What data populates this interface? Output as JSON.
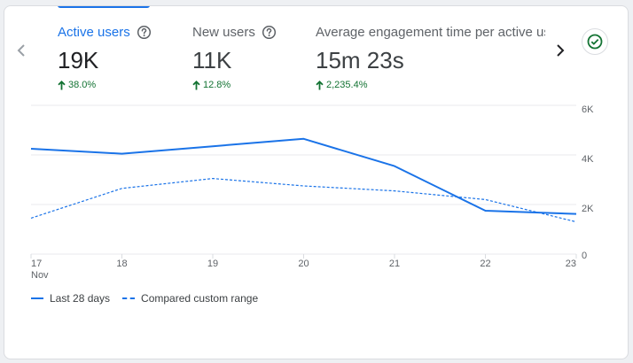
{
  "metrics": [
    {
      "label": "Active users",
      "value": "19K",
      "change": "38.0%",
      "active": true
    },
    {
      "label": "New users",
      "value": "11K",
      "change": "12.8%",
      "active": false
    },
    {
      "label": "Average engagement time per active user",
      "value": "15m 23s",
      "change": "2,235.4%",
      "active": false
    }
  ],
  "colors": {
    "accent": "#1a73e8",
    "positive": "#137333",
    "grid": "#e8eaed",
    "text": "#5f6368"
  },
  "icons": {
    "prev": "chevron-left-icon",
    "next": "chevron-right-icon",
    "check": "check-circle-icon",
    "help": "help-circle-icon",
    "up": "arrow-up-icon"
  },
  "chart_data": {
    "type": "line",
    "x": [
      "17",
      "18",
      "19",
      "20",
      "21",
      "22",
      "23"
    ],
    "x_sublabel": "Nov",
    "series": [
      {
        "name": "Last 28 days",
        "style": "solid",
        "values": [
          4250,
          4050,
          4350,
          4650,
          3550,
          1750,
          1620
        ]
      },
      {
        "name": "Compared custom range",
        "style": "dashed",
        "values": [
          1450,
          2650,
          3050,
          2750,
          2550,
          2200,
          1300
        ]
      }
    ],
    "y_ticks": [
      {
        "value": 0,
        "label": "0"
      },
      {
        "value": 2000,
        "label": "2K"
      },
      {
        "value": 4000,
        "label": "4K"
      },
      {
        "value": 6000,
        "label": "6K"
      }
    ],
    "ylim": [
      0,
      6000
    ],
    "grid": true,
    "legend_position": "bottom-left"
  }
}
